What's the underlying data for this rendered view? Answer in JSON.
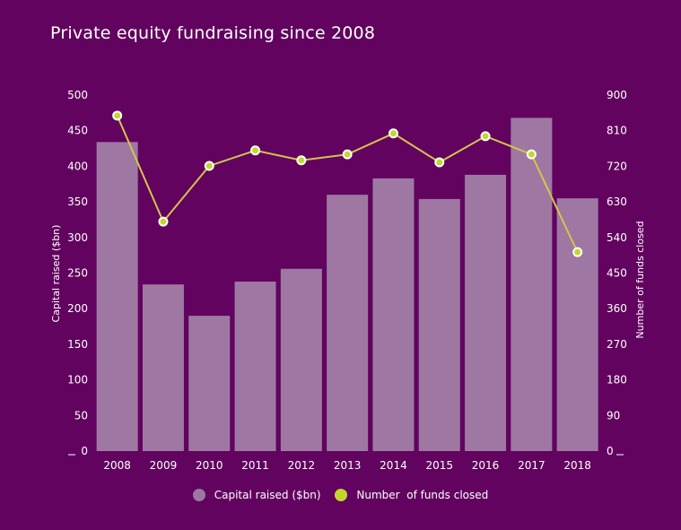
{
  "chart_data": {
    "type": "bar",
    "title": "Private equity fundraising since 2008",
    "categories": [
      "2008",
      "2009",
      "2010",
      "2011",
      "2012",
      "2013",
      "2014",
      "2015",
      "2016",
      "2017",
      "2018"
    ],
    "series": [
      {
        "name": "Capital raised ($bn)",
        "type": "bar",
        "axis": "left",
        "color": "#9e78a3",
        "values": [
          434,
          234,
          190,
          238,
          256,
          360,
          383,
          354,
          388,
          468,
          355
        ]
      },
      {
        "name": "Number  of funds closed",
        "type": "line",
        "axis": "right",
        "color": "#c4d62e",
        "values": [
          848,
          580,
          721,
          760,
          735,
          750,
          803,
          730,
          796,
          750,
          503
        ]
      }
    ],
    "ylabel": "Capital raised ($bn)",
    "y2label": "Number of funds closed",
    "ylim": [
      0,
      500
    ],
    "y2lim": [
      0,
      900
    ],
    "yticks": [
      "0",
      "50",
      "100",
      "150",
      "200",
      "250",
      "300",
      "350",
      "400",
      "450",
      "500"
    ],
    "y2ticks": [
      "0",
      "90",
      "180",
      "270",
      "360",
      "450",
      "540",
      "630",
      "720",
      "810",
      "900"
    ],
    "grid": false,
    "legend": "bottom"
  }
}
